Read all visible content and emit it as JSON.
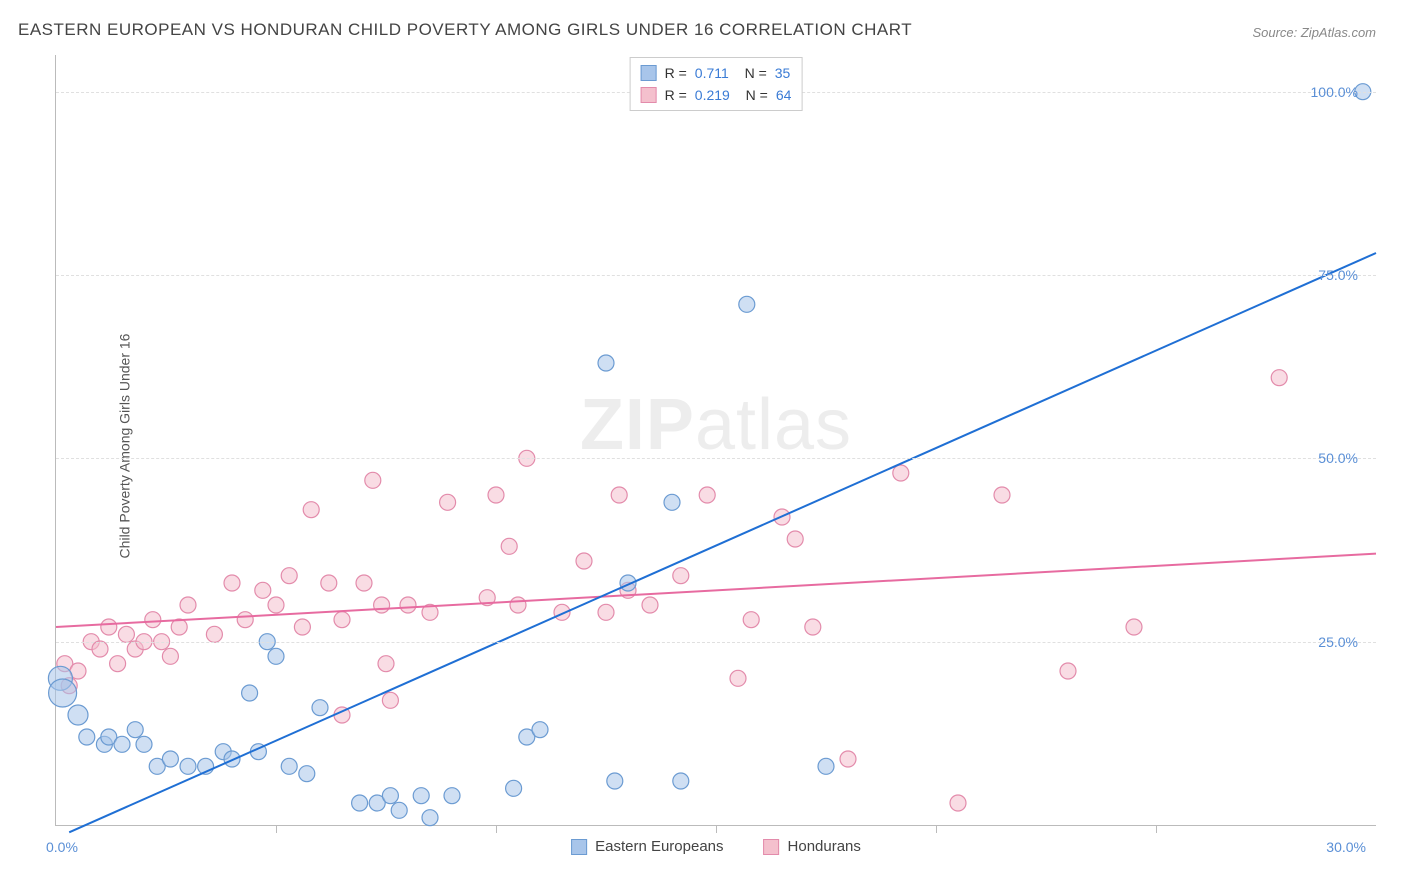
{
  "title": "EASTERN EUROPEAN VS HONDURAN CHILD POVERTY AMONG GIRLS UNDER 16 CORRELATION CHART",
  "source": "Source: ZipAtlas.com",
  "y_axis_label": "Child Poverty Among Girls Under 16",
  "watermark_a": "ZIP",
  "watermark_b": "atlas",
  "chart": {
    "type": "scatter",
    "background_color": "#ffffff",
    "grid_color": "#e0e0e0",
    "axis_color": "#bbbbbb",
    "xlim": [
      0,
      30
    ],
    "ylim": [
      0,
      105
    ],
    "ytick_step": 25,
    "xtick_step": 5,
    "ytick_labels": [
      "25.0%",
      "50.0%",
      "75.0%",
      "100.0%"
    ],
    "xtick_start_label": "0.0%",
    "xtick_end_label": "30.0%",
    "label_color": "#5a8fd6",
    "label_fontsize": 14,
    "title_color": "#444444",
    "title_fontsize": 17,
    "marker_radius": 8,
    "marker_stroke_width": 1.2,
    "line_width": 2,
    "series": [
      {
        "name": "Eastern Europeans",
        "legend_label": "Eastern Europeans",
        "color_fill": "#a8c5ea",
        "color_stroke": "#6b9bd2",
        "fill_opacity": 0.55,
        "line_color": "#1f6fd4",
        "R": "0.711",
        "N": "35",
        "trend": {
          "x1": 0.3,
          "y1": -1,
          "x2": 30,
          "y2": 78
        },
        "points": [
          {
            "x": 0.1,
            "y": 20,
            "r": 12
          },
          {
            "x": 0.15,
            "y": 18,
            "r": 14
          },
          {
            "x": 0.5,
            "y": 15,
            "r": 10
          },
          {
            "x": 0.7,
            "y": 12
          },
          {
            "x": 1.1,
            "y": 11
          },
          {
            "x": 1.2,
            "y": 12
          },
          {
            "x": 1.5,
            "y": 11
          },
          {
            "x": 1.8,
            "y": 13
          },
          {
            "x": 2.0,
            "y": 11
          },
          {
            "x": 2.3,
            "y": 8
          },
          {
            "x": 2.6,
            "y": 9
          },
          {
            "x": 3.0,
            "y": 8
          },
          {
            "x": 3.4,
            "y": 8
          },
          {
            "x": 3.8,
            "y": 10
          },
          {
            "x": 4.0,
            "y": 9
          },
          {
            "x": 4.4,
            "y": 18
          },
          {
            "x": 4.6,
            "y": 10
          },
          {
            "x": 4.8,
            "y": 25
          },
          {
            "x": 5.0,
            "y": 23
          },
          {
            "x": 5.3,
            "y": 8
          },
          {
            "x": 5.7,
            "y": 7
          },
          {
            "x": 6.0,
            "y": 16
          },
          {
            "x": 6.9,
            "y": 3
          },
          {
            "x": 7.3,
            "y": 3
          },
          {
            "x": 7.6,
            "y": 4
          },
          {
            "x": 7.8,
            "y": 2
          },
          {
            "x": 8.3,
            "y": 4
          },
          {
            "x": 8.5,
            "y": 1
          },
          {
            "x": 9.0,
            "y": 4
          },
          {
            "x": 10.4,
            "y": 5
          },
          {
            "x": 10.7,
            "y": 12
          },
          {
            "x": 11.0,
            "y": 13
          },
          {
            "x": 12.5,
            "y": 63
          },
          {
            "x": 13.0,
            "y": 33
          },
          {
            "x": 12.7,
            "y": 6
          },
          {
            "x": 14.0,
            "y": 44
          },
          {
            "x": 14.2,
            "y": 6
          },
          {
            "x": 15.7,
            "y": 71
          },
          {
            "x": 17.5,
            "y": 8
          },
          {
            "x": 29.7,
            "y": 100
          }
        ]
      },
      {
        "name": "Hondurans",
        "legend_label": "Hondurans",
        "color_fill": "#f4c0cd",
        "color_stroke": "#e38bab",
        "fill_opacity": 0.55,
        "line_color": "#e76ba0",
        "R": "0.219",
        "N": "64",
        "trend": {
          "x1": 0,
          "y1": 27,
          "x2": 30,
          "y2": 37
        },
        "points": [
          {
            "x": 0.2,
            "y": 22
          },
          {
            "x": 0.3,
            "y": 19
          },
          {
            "x": 0.5,
            "y": 21
          },
          {
            "x": 0.8,
            "y": 25
          },
          {
            "x": 1.0,
            "y": 24
          },
          {
            "x": 1.2,
            "y": 27
          },
          {
            "x": 1.4,
            "y": 22
          },
          {
            "x": 1.6,
            "y": 26
          },
          {
            "x": 1.8,
            "y": 24
          },
          {
            "x": 2.0,
            "y": 25
          },
          {
            "x": 2.2,
            "y": 28
          },
          {
            "x": 2.4,
            "y": 25
          },
          {
            "x": 2.6,
            "y": 23
          },
          {
            "x": 2.8,
            "y": 27
          },
          {
            "x": 3.0,
            "y": 30
          },
          {
            "x": 3.6,
            "y": 26
          },
          {
            "x": 4.0,
            "y": 33
          },
          {
            "x": 4.3,
            "y": 28
          },
          {
            "x": 4.7,
            "y": 32
          },
          {
            "x": 5.0,
            "y": 30
          },
          {
            "x": 5.3,
            "y": 34
          },
          {
            "x": 5.6,
            "y": 27
          },
          {
            "x": 5.8,
            "y": 43
          },
          {
            "x": 6.2,
            "y": 33
          },
          {
            "x": 6.5,
            "y": 28
          },
          {
            "x": 6.5,
            "y": 15
          },
          {
            "x": 7.0,
            "y": 33
          },
          {
            "x": 7.2,
            "y": 47
          },
          {
            "x": 7.4,
            "y": 30
          },
          {
            "x": 7.5,
            "y": 22
          },
          {
            "x": 7.6,
            "y": 17
          },
          {
            "x": 8.0,
            "y": 30
          },
          {
            "x": 8.5,
            "y": 29
          },
          {
            "x": 8.9,
            "y": 44
          },
          {
            "x": 9.8,
            "y": 31
          },
          {
            "x": 10.0,
            "y": 45
          },
          {
            "x": 10.3,
            "y": 38
          },
          {
            "x": 10.5,
            "y": 30
          },
          {
            "x": 10.7,
            "y": 50
          },
          {
            "x": 11.5,
            "y": 29
          },
          {
            "x": 12.0,
            "y": 36
          },
          {
            "x": 12.5,
            "y": 29
          },
          {
            "x": 12.8,
            "y": 45
          },
          {
            "x": 13.0,
            "y": 32
          },
          {
            "x": 13.5,
            "y": 30
          },
          {
            "x": 14.2,
            "y": 34
          },
          {
            "x": 14.8,
            "y": 45
          },
          {
            "x": 15.5,
            "y": 20
          },
          {
            "x": 15.8,
            "y": 28
          },
          {
            "x": 16.5,
            "y": 42
          },
          {
            "x": 16.8,
            "y": 39
          },
          {
            "x": 17.2,
            "y": 27
          },
          {
            "x": 18.0,
            "y": 9
          },
          {
            "x": 19.2,
            "y": 48
          },
          {
            "x": 20.5,
            "y": 3
          },
          {
            "x": 21.5,
            "y": 45
          },
          {
            "x": 23.0,
            "y": 21
          },
          {
            "x": 24.5,
            "y": 27
          },
          {
            "x": 27.8,
            "y": 61
          }
        ]
      }
    ]
  }
}
